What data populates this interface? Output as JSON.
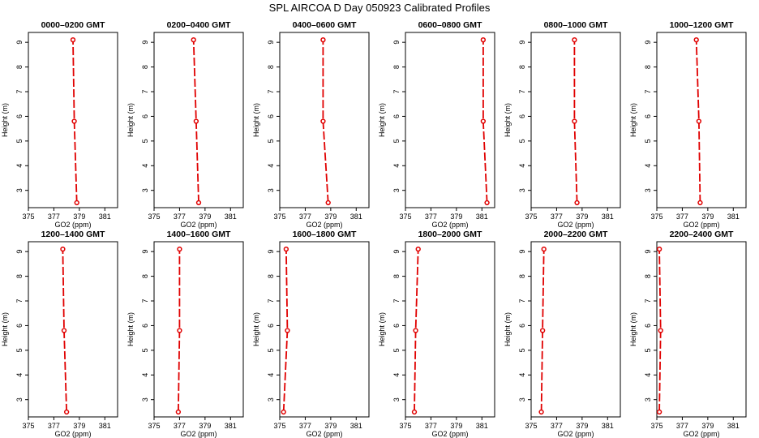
{
  "title": "SPL AIRCOA D  Day 050923  Calibrated Profiles",
  "chart_data": {
    "type": "line",
    "layout": "2 rows x 6 columns of small multiples",
    "xlabel": "GO2 (ppm)",
    "ylabel": "Height (m)",
    "xlim": [
      375,
      382
    ],
    "ylim": [
      2.3,
      9.4
    ],
    "xticks": [
      "375",
      "377",
      "379",
      "381"
    ],
    "yticks": [
      "3",
      "4",
      "5",
      "6",
      "7",
      "8",
      "9"
    ],
    "heights": [
      2.5,
      5.8,
      9.1
    ],
    "line_color": "#e00000",
    "panels": [
      {
        "title": "0000–0200 GMT",
        "co2": [
          378.8,
          378.6,
          378.5
        ]
      },
      {
        "title": "0200–0400 GMT",
        "co2": [
          378.5,
          378.3,
          378.1
        ]
      },
      {
        "title": "0400–0600 GMT",
        "co2": [
          378.8,
          378.4,
          378.4
        ]
      },
      {
        "title": "0600–0800 GMT",
        "co2": [
          381.4,
          381.1,
          381.1
        ]
      },
      {
        "title": "0800–1000 GMT",
        "co2": [
          378.6,
          378.4,
          378.4
        ]
      },
      {
        "title": "1000–1200 GMT",
        "co2": [
          378.4,
          378.3,
          378.1
        ]
      },
      {
        "title": "1200–1400 GMT",
        "co2": [
          378.0,
          377.8,
          377.7
        ]
      },
      {
        "title": "1400–1600 GMT",
        "co2": [
          376.9,
          377.0,
          377.0
        ]
      },
      {
        "title": "1600–1800 GMT",
        "co2": [
          375.3,
          375.6,
          375.5
        ]
      },
      {
        "title": "1800–2000 GMT",
        "co2": [
          375.7,
          375.8,
          376.0
        ]
      },
      {
        "title": "2000–2200 GMT",
        "co2": [
          375.8,
          375.9,
          376.0
        ]
      },
      {
        "title": "2200–2400 GMT",
        "co2": [
          375.2,
          375.3,
          375.2
        ]
      }
    ]
  }
}
